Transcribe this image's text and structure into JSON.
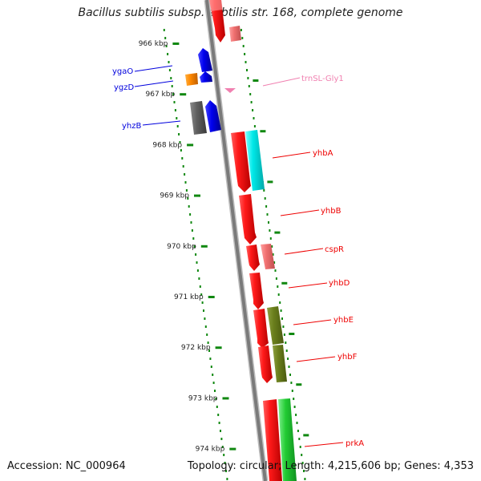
{
  "title": "Bacillus subtilis subsp. subtilis str. 168, complete genome",
  "footer": {
    "accession": "Accession: NC_000964",
    "summary": "Topology: circular; Length: 4,215,606 bp; Genes: 4,353"
  },
  "colors": {
    "backbone": "#7d7d7d",
    "dots": "#118811",
    "red": "#ee0000",
    "pink": "#ee7777",
    "blue": "#0000dd",
    "orange": "#ff8800",
    "gray": "#606060",
    "cyan": "#00e0e0",
    "olive": "#667a1a",
    "green": "#22cc33",
    "trna": "#f080b0"
  },
  "ticks": [
    "966 kbp",
    "967 kbp",
    "968 kbp",
    "969 kbp",
    "970 kbp",
    "971 kbp",
    "972 kbp",
    "973 kbp",
    "974 kbp"
  ],
  "labels": [
    {
      "text": "ygaO",
      "color": "#0000dd"
    },
    {
      "text": "ygzD",
      "color": "#0000dd"
    },
    {
      "text": "yhzB",
      "color": "#0000dd"
    },
    {
      "text": "trnSL-Gly1",
      "color": "#f080b0"
    },
    {
      "text": "yhbA",
      "color": "#ee0000"
    },
    {
      "text": "yhbB",
      "color": "#ee0000"
    },
    {
      "text": "cspR",
      "color": "#ee0000"
    },
    {
      "text": "yhbD",
      "color": "#ee0000"
    },
    {
      "text": "yhbE",
      "color": "#ee0000"
    },
    {
      "text": "yhbF",
      "color": "#ee0000"
    },
    {
      "text": "prkA",
      "color": "#ee0000"
    }
  ]
}
